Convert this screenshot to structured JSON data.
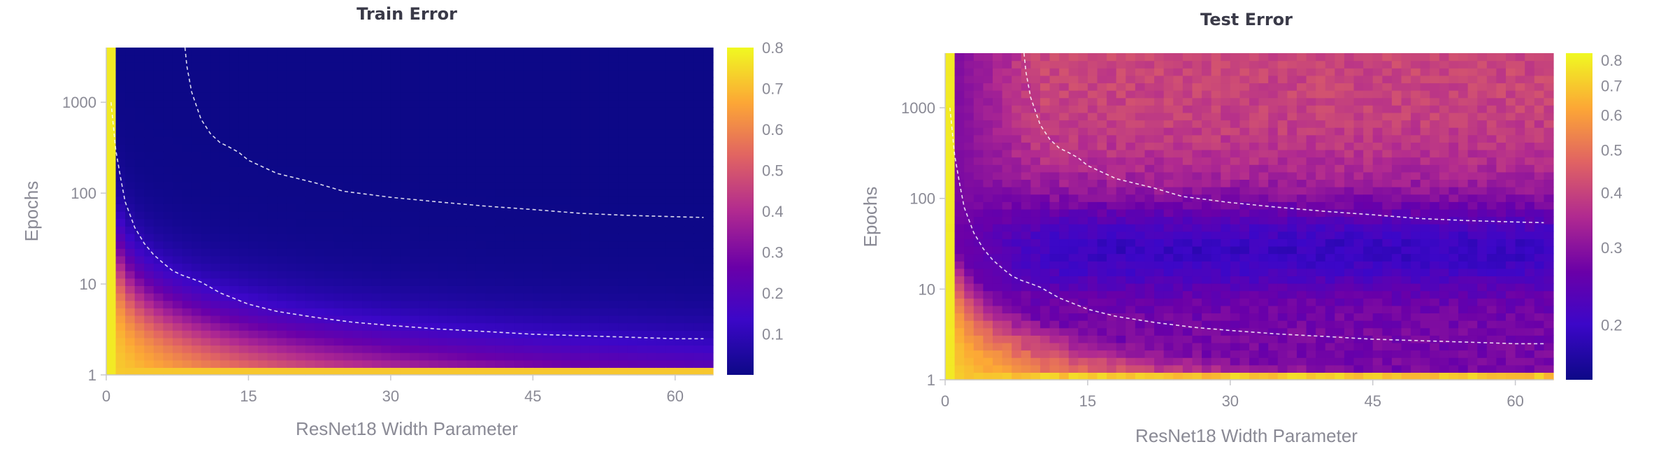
{
  "chart_data": [
    {
      "type": "heatmap",
      "title": "Train Error",
      "xlabel": "ResNet18 Width Parameter",
      "ylabel": "Epochs",
      "x_range": [
        0,
        64
      ],
      "y_range": [
        1,
        4000
      ],
      "y_scale": "log",
      "x_ticks": [
        "0",
        "15",
        "30",
        "45",
        "60"
      ],
      "y_ticks": [
        "1",
        "10",
        "100",
        "1000"
      ],
      "colorbar": {
        "range": [
          0.0,
          0.8
        ],
        "ticks": [
          "0.8",
          "0.7",
          "0.6",
          "0.5",
          "0.4",
          "0.3",
          "0.2",
          "0.1"
        ]
      },
      "colormap": [
        "#0d0887",
        "#3c07c8",
        "#6a00a8",
        "#b12a90",
        "#e16462",
        "#fca636",
        "#f0f921"
      ],
      "contours": [
        {
          "x": [
            0.5,
            1,
            1.5,
            2,
            3,
            4,
            5,
            6,
            7,
            8,
            9,
            10,
            12,
            15,
            18,
            22,
            26,
            30,
            35,
            40,
            45,
            50,
            55,
            60,
            63
          ],
          "epochs": [
            1000,
            300,
            150,
            80,
            42,
            28,
            21,
            17,
            14,
            12.5,
            11.5,
            10.5,
            8,
            6,
            5,
            4.3,
            3.8,
            3.5,
            3.2,
            3,
            2.8,
            2.7,
            2.6,
            2.5,
            2.5
          ]
        },
        {
          "x": [
            8.3,
            8.5,
            9,
            10,
            11,
            12,
            13,
            14,
            15,
            18,
            22,
            25,
            30,
            35,
            40,
            45,
            50,
            55,
            60,
            63
          ],
          "epochs": [
            4000,
            2500,
            1300,
            650,
            450,
            360,
            320,
            280,
            230,
            165,
            130,
            105,
            90,
            80,
            72,
            66,
            60,
            57,
            55,
            54
          ]
        }
      ]
    },
    {
      "type": "heatmap",
      "title": "Test Error",
      "xlabel": "ResNet18 Width Parameter",
      "ylabel": "Epochs",
      "x_range": [
        0,
        64
      ],
      "y_range": [
        1,
        4000
      ],
      "y_scale": "log",
      "x_ticks": [
        "0",
        "15",
        "30",
        "45",
        "60"
      ],
      "y_ticks": [
        "1",
        "10",
        "100",
        "1000"
      ],
      "colorbar": {
        "range": [
          0.15,
          0.83
        ],
        "scale": "log",
        "ticks": [
          "0.8",
          "0.7",
          "0.6",
          "0.5",
          "0.4",
          "0.3",
          "0.2"
        ]
      },
      "colormap": [
        "#0d0887",
        "#3c07c8",
        "#6a00a8",
        "#b12a90",
        "#e16462",
        "#fca636",
        "#f0f921"
      ],
      "contours": [
        {
          "x": [
            0.5,
            1,
            1.5,
            2,
            3,
            4,
            5,
            6,
            7,
            8,
            9,
            10,
            12,
            15,
            18,
            22,
            26,
            30,
            35,
            40,
            45,
            50,
            55,
            60,
            63
          ],
          "epochs": [
            1000,
            300,
            150,
            80,
            42,
            28,
            21,
            17,
            14,
            12.5,
            11.5,
            10.5,
            8,
            6,
            5,
            4.3,
            3.8,
            3.5,
            3.2,
            3,
            2.8,
            2.7,
            2.6,
            2.5,
            2.5
          ]
        },
        {
          "x": [
            8.3,
            8.5,
            9,
            10,
            11,
            12,
            13,
            14,
            15,
            18,
            22,
            25,
            30,
            35,
            40,
            45,
            50,
            55,
            60,
            63
          ],
          "epochs": [
            4000,
            2500,
            1300,
            650,
            450,
            360,
            320,
            280,
            230,
            165,
            130,
            105,
            90,
            80,
            72,
            66,
            60,
            57,
            55,
            54
          ]
        }
      ]
    }
  ]
}
